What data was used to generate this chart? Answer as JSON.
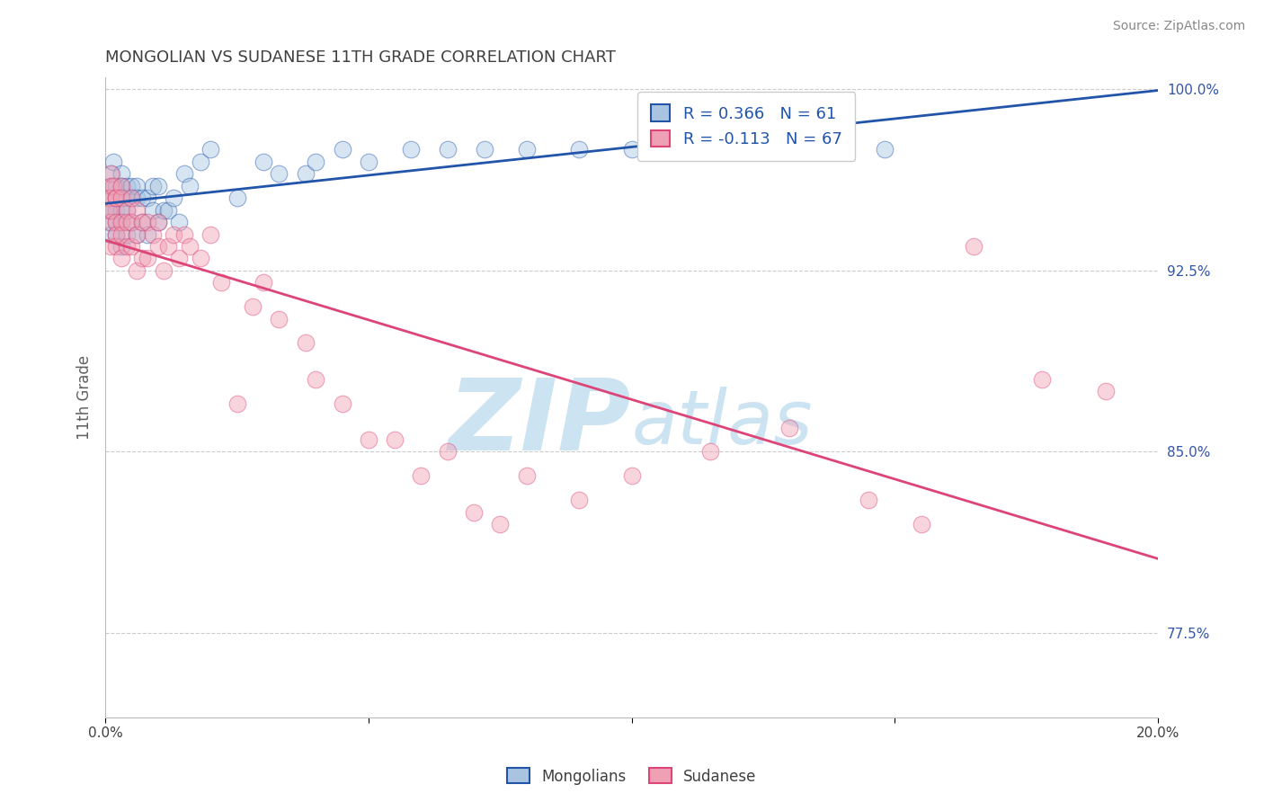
{
  "title": "MONGOLIAN VS SUDANESE 11TH GRADE CORRELATION CHART",
  "source": "Source: ZipAtlas.com",
  "ylabel": "11th Grade",
  "xlim": [
    0.0,
    0.2
  ],
  "ylim": [
    0.74,
    1.005
  ],
  "xtick_labels": [
    "0.0%",
    "",
    "",
    "",
    "20.0%"
  ],
  "yticks": [
    0.775,
    0.85,
    0.925,
    1.0
  ],
  "ytick_labels": [
    "77.5%",
    "85.0%",
    "92.5%",
    "100.0%"
  ],
  "grid_color": "#cccccc",
  "background_color": "#ffffff",
  "mongolian_color": "#a8c4e0",
  "sudanese_color": "#f0a0b4",
  "mongolian_line_color": "#2255aa",
  "sudanese_line_color": "#dd4477",
  "legend_R_mongolian": "R = 0.366",
  "legend_N_mongolian": "N = 61",
  "legend_R_sudanese": "R = -0.113",
  "legend_N_sudanese": "N = 67",
  "mongolian_x": [
    0.0005,
    0.0007,
    0.001,
    0.001,
    0.001,
    0.001,
    0.0012,
    0.0015,
    0.002,
    0.002,
    0.002,
    0.002,
    0.002,
    0.003,
    0.003,
    0.003,
    0.003,
    0.003,
    0.003,
    0.004,
    0.004,
    0.004,
    0.004,
    0.005,
    0.005,
    0.005,
    0.006,
    0.006,
    0.006,
    0.007,
    0.007,
    0.008,
    0.008,
    0.009,
    0.009,
    0.01,
    0.01,
    0.011,
    0.012,
    0.013,
    0.014,
    0.015,
    0.016,
    0.018,
    0.02,
    0.025,
    0.03,
    0.033,
    0.038,
    0.04,
    0.045,
    0.05,
    0.058,
    0.065,
    0.072,
    0.08,
    0.09,
    0.1,
    0.115,
    0.13,
    0.148
  ],
  "mongolian_y": [
    0.95,
    0.945,
    0.96,
    0.955,
    0.95,
    0.94,
    0.965,
    0.97,
    0.96,
    0.955,
    0.95,
    0.945,
    0.94,
    0.965,
    0.96,
    0.955,
    0.95,
    0.945,
    0.935,
    0.96,
    0.955,
    0.95,
    0.94,
    0.96,
    0.955,
    0.945,
    0.96,
    0.955,
    0.94,
    0.955,
    0.945,
    0.955,
    0.94,
    0.96,
    0.95,
    0.96,
    0.945,
    0.95,
    0.95,
    0.955,
    0.945,
    0.965,
    0.96,
    0.97,
    0.975,
    0.955,
    0.97,
    0.965,
    0.965,
    0.97,
    0.975,
    0.97,
    0.975,
    0.975,
    0.975,
    0.975,
    0.975,
    0.975,
    0.975,
    0.975,
    0.975
  ],
  "sudanese_x": [
    0.0005,
    0.0007,
    0.001,
    0.001,
    0.001,
    0.001,
    0.001,
    0.0012,
    0.0015,
    0.002,
    0.002,
    0.002,
    0.002,
    0.002,
    0.003,
    0.003,
    0.003,
    0.003,
    0.003,
    0.004,
    0.004,
    0.004,
    0.005,
    0.005,
    0.005,
    0.006,
    0.006,
    0.006,
    0.007,
    0.007,
    0.008,
    0.008,
    0.009,
    0.01,
    0.01,
    0.011,
    0.012,
    0.013,
    0.014,
    0.015,
    0.016,
    0.018,
    0.02,
    0.022,
    0.025,
    0.028,
    0.03,
    0.033,
    0.038,
    0.04,
    0.045,
    0.05,
    0.055,
    0.06,
    0.065,
    0.07,
    0.075,
    0.08,
    0.09,
    0.1,
    0.115,
    0.13,
    0.145,
    0.155,
    0.165,
    0.178,
    0.19
  ],
  "sudanese_y": [
    0.955,
    0.95,
    0.965,
    0.96,
    0.955,
    0.945,
    0.935,
    0.95,
    0.96,
    0.955,
    0.945,
    0.94,
    0.955,
    0.935,
    0.96,
    0.955,
    0.945,
    0.94,
    0.93,
    0.95,
    0.945,
    0.935,
    0.955,
    0.945,
    0.935,
    0.95,
    0.94,
    0.925,
    0.945,
    0.93,
    0.945,
    0.93,
    0.94,
    0.945,
    0.935,
    0.925,
    0.935,
    0.94,
    0.93,
    0.94,
    0.935,
    0.93,
    0.94,
    0.92,
    0.87,
    0.91,
    0.92,
    0.905,
    0.895,
    0.88,
    0.87,
    0.855,
    0.855,
    0.84,
    0.85,
    0.825,
    0.82,
    0.84,
    0.83,
    0.84,
    0.85,
    0.86,
    0.83,
    0.82,
    0.935,
    0.88,
    0.875
  ],
  "marker_size": 180,
  "marker_alpha": 0.45,
  "watermark_color": "#cce4f2",
  "watermark_fontsize": 80,
  "title_color": "#404040",
  "title_fontsize": 13,
  "axis_label_color": "#606060",
  "tick_color_x": "#404040",
  "tick_color_y": "#3355aa",
  "source_color": "#888888",
  "source_fontsize": 10,
  "legend_fontsize": 13
}
